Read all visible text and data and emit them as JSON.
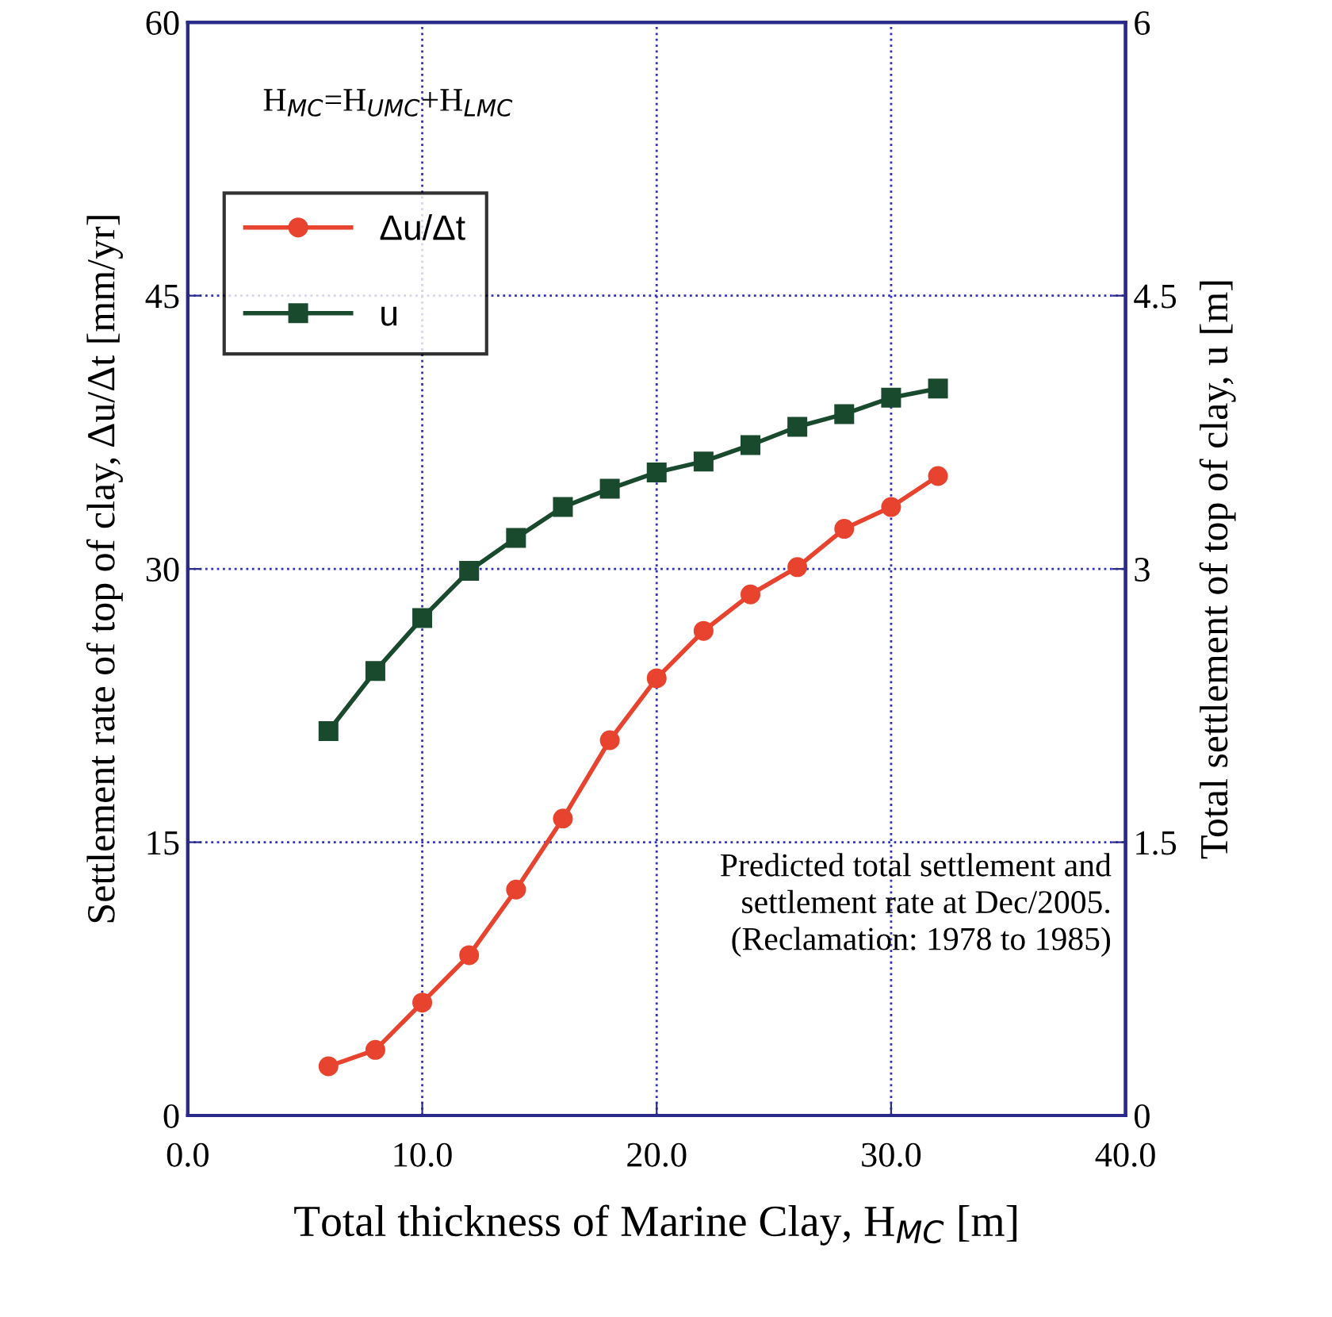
{
  "chart_data": {
    "type": "line",
    "xlabel": "Total thickness of Marine Clay, H$_{MC}$ [m]",
    "ylabel": "Settlement rate of top of clay, Δu/Δt [mm/yr]",
    "y2label": "Total settlement of top of clay, u [m]",
    "x": [
      6,
      8,
      10,
      12,
      14,
      16,
      18,
      20,
      22,
      24,
      26,
      28,
      30,
      32
    ],
    "series": [
      {
        "name": "Δu/Δt",
        "color": "#e8432e",
        "values": [
          2.7,
          3.6,
          6.2,
          8.8,
          12.4,
          16.3,
          20.6,
          24.0,
          26.6,
          28.6,
          30.1,
          32.2,
          33.4,
          35.1
        ],
        "marker": "circle"
      },
      {
        "name": "u",
        "color": "#1a4a2e",
        "axis": "y2",
        "values": [
          2.11,
          2.44,
          2.73,
          2.99,
          3.17,
          3.34,
          3.44,
          3.53,
          3.59,
          3.68,
          3.78,
          3.85,
          3.94,
          3.99
        ],
        "marker": "square"
      }
    ],
    "xlim": [
      0,
      40
    ],
    "xticks": [
      {
        "value": 0,
        "label": "0.0"
      },
      {
        "value": 10,
        "label": "10.0"
      },
      {
        "value": 20,
        "label": "20.0"
      },
      {
        "value": 30,
        "label": "30.0"
      },
      {
        "value": 40,
        "label": "40.0"
      }
    ],
    "ylim": [
      0,
      60
    ],
    "yticks": [
      0,
      15,
      30,
      45,
      60
    ],
    "y2lim": [
      0,
      6
    ],
    "y2ticks": [
      0,
      1.5,
      3,
      4.5,
      6
    ],
    "grid": true,
    "legend": "top left",
    "line_style": "solid",
    "annotations": [
      "H$_{MC}$=H$_{UMC}$+H$_{LMC}$",
      "Predicted total settlement and\nsettlement rate at Dec/2005.\n(Reclamation: 1978 to 1985)"
    ]
  }
}
